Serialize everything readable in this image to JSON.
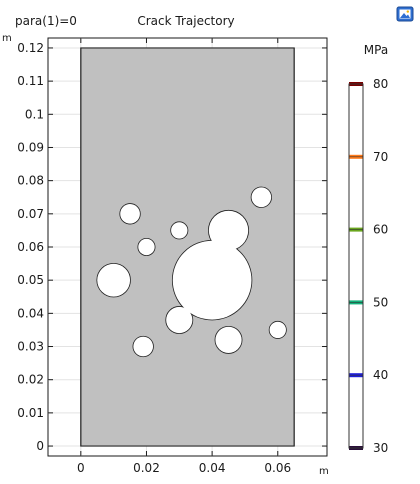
{
  "header": {
    "param_label": "para(1)=0",
    "title": "Crack Trajectory"
  },
  "colors": {
    "specimen_fill": "#c0c0c0",
    "specimen_stroke": "#222222",
    "hole_fill": "#ffffff",
    "axis": "#1a1a1a",
    "grid": "#e3e3e3"
  },
  "chart_data": {
    "type": "scatter",
    "title": "Crack Trajectory",
    "xlabel": "m",
    "ylabel": "m",
    "xlim": [
      -0.01,
      0.075
    ],
    "ylim": [
      -0.003,
      0.123
    ],
    "x_ticks": [
      0,
      0.02,
      0.04,
      0.06
    ],
    "x_tick_labels": [
      "0",
      "0.02",
      "0.04",
      "0.06"
    ],
    "y_ticks": [
      0,
      0.01,
      0.02,
      0.03,
      0.04,
      0.05,
      0.06,
      0.07,
      0.08,
      0.09,
      0.1,
      0.11,
      0.12
    ],
    "y_tick_labels": [
      "0",
      "0.01",
      "0.02",
      "0.03",
      "0.04",
      "0.05",
      "0.06",
      "0.07",
      "0.08",
      "0.09",
      "0.1",
      "0.11",
      "0.12"
    ],
    "grid": true,
    "specimen": {
      "x0": 0,
      "x1": 0.065,
      "y0": 0,
      "y1": 0.12
    },
    "holes": [
      {
        "cx": 0.04,
        "cy": 0.05,
        "r": 0.012
      },
      {
        "cx": 0.045,
        "cy": 0.065,
        "r": 0.006
      },
      {
        "cx": 0.01,
        "cy": 0.05,
        "r": 0.005
      },
      {
        "cx": 0.03,
        "cy": 0.038,
        "r": 0.004
      },
      {
        "cx": 0.045,
        "cy": 0.032,
        "r": 0.004
      },
      {
        "cx": 0.015,
        "cy": 0.07,
        "r": 0.003
      },
      {
        "cx": 0.055,
        "cy": 0.075,
        "r": 0.003
      },
      {
        "cx": 0.019,
        "cy": 0.03,
        "r": 0.003
      },
      {
        "cx": 0.02,
        "cy": 0.06,
        "r": 0.0025
      },
      {
        "cx": 0.03,
        "cy": 0.065,
        "r": 0.0025
      },
      {
        "cx": 0.06,
        "cy": 0.035,
        "r": 0.0025
      }
    ],
    "colorbar": {
      "unit": "MPa",
      "min": 30,
      "max": 80,
      "ticks": [
        30,
        40,
        50,
        60,
        70,
        80
      ],
      "tick_labels": [
        "30",
        "40",
        "50",
        "60",
        "70",
        "80"
      ],
      "band_colors": [
        "#2a0f3a",
        "#1f1fd8",
        "#12b07a",
        "#6aa61e",
        "#ff7a1a",
        "#7a0000"
      ]
    }
  },
  "icons": {
    "corner": "picture-icon"
  }
}
